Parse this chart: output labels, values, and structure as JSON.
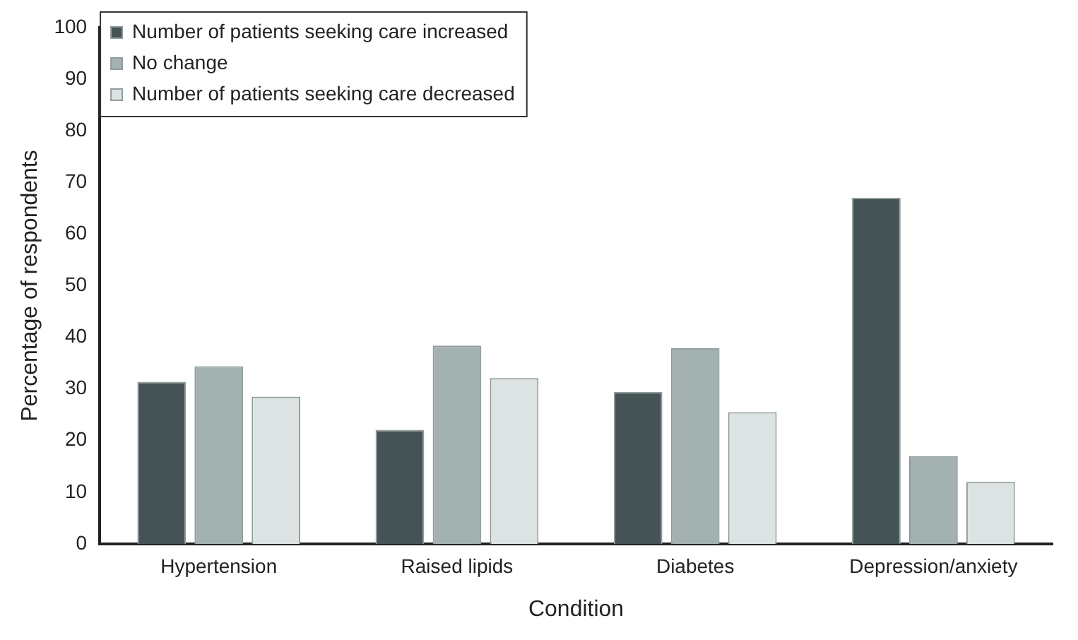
{
  "chart_data": {
    "type": "bar",
    "xlabel": "Condition",
    "ylabel": "Percentage of respondents",
    "categories": [
      "Hypertension",
      "Raised lipids",
      "Diabetes",
      "Depression/anxiety"
    ],
    "series": [
      {
        "name": "Number of patients seeking care increased",
        "color": "#465355",
        "values": [
          31.4,
          22.1,
          29.4,
          67.0
        ]
      },
      {
        "name": "No change",
        "color": "#a4b1b1",
        "values": [
          34.4,
          38.4,
          37.9,
          17.0
        ]
      },
      {
        "name": "Number of patients seeking care decreased",
        "color": "#dde3e3",
        "values": [
          28.5,
          32.1,
          25.5,
          12.0
        ]
      }
    ],
    "ylim": [
      0,
      100
    ],
    "yticks": [
      0,
      10,
      20,
      30,
      40,
      50,
      60,
      70,
      80,
      90,
      100
    ],
    "grid": false,
    "legend": "top left"
  }
}
